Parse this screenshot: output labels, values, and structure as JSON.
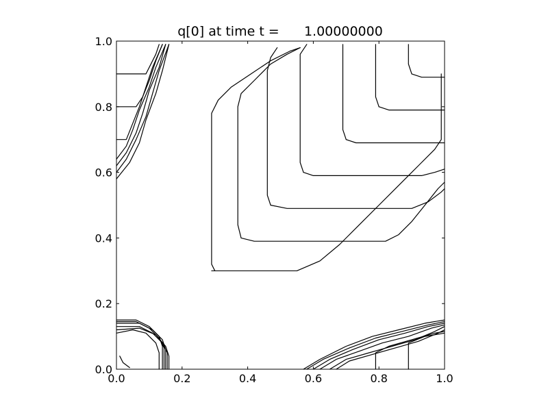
{
  "chart_data": {
    "type": "contour",
    "title": "q[0] at time t =      1.00000000",
    "xlabel": "",
    "ylabel": "",
    "xlim": [
      0.0,
      1.0
    ],
    "ylim": [
      0.0,
      1.0
    ],
    "xticks": [
      {
        "value": 0.0,
        "label": "0.0"
      },
      {
        "value": 0.2,
        "label": "0.2"
      },
      {
        "value": 0.4,
        "label": "0.4"
      },
      {
        "value": 0.6,
        "label": "0.6"
      },
      {
        "value": 0.8,
        "label": "0.8"
      },
      {
        "value": 1.0,
        "label": "1.0"
      }
    ],
    "yticks": [
      {
        "value": 0.0,
        "label": "0.0"
      },
      {
        "value": 0.2,
        "label": "0.2"
      },
      {
        "value": 0.4,
        "label": "0.4"
      },
      {
        "value": 0.6,
        "label": "0.6"
      },
      {
        "value": 0.8,
        "label": "0.8"
      },
      {
        "value": 1.0,
        "label": "1.0"
      }
    ],
    "grid": false,
    "line_color": "#000000",
    "contours": [
      {
        "points": [
          [
            0.29,
            0.3
          ],
          [
            0.55,
            0.3
          ],
          [
            0.62,
            0.33
          ],
          [
            0.68,
            0.38
          ],
          [
            0.74,
            0.44
          ],
          [
            0.8,
            0.5
          ],
          [
            0.86,
            0.56
          ],
          [
            0.92,
            0.62
          ],
          [
            0.97,
            0.67
          ],
          [
            0.99,
            0.7
          ],
          [
            0.99,
            0.8
          ],
          [
            0.99,
            0.9
          ]
        ]
      },
      {
        "points": [
          [
            0.3,
            0.3
          ],
          [
            0.29,
            0.32
          ],
          [
            0.29,
            0.78
          ],
          [
            0.31,
            0.82
          ],
          [
            0.35,
            0.86
          ],
          [
            0.41,
            0.9
          ],
          [
            0.47,
            0.94
          ],
          [
            0.53,
            0.97
          ]
        ]
      },
      {
        "points": [
          [
            0.53,
            0.97
          ],
          [
            0.56,
            0.98
          ]
        ]
      },
      {
        "points": [
          [
            0.38,
            0.4
          ],
          [
            0.42,
            0.39
          ],
          [
            0.82,
            0.39
          ],
          [
            0.86,
            0.41
          ],
          [
            0.9,
            0.45
          ],
          [
            0.94,
            0.5
          ],
          [
            0.98,
            0.55
          ],
          [
            1.0,
            0.57
          ]
        ]
      },
      {
        "points": [
          [
            0.38,
            0.4
          ],
          [
            0.37,
            0.44
          ],
          [
            0.37,
            0.8
          ],
          [
            0.38,
            0.84
          ],
          [
            0.42,
            0.88
          ],
          [
            0.47,
            0.93
          ],
          [
            0.52,
            0.96
          ],
          [
            0.56,
            0.98
          ]
        ]
      },
      {
        "points": [
          [
            0.47,
            0.5
          ],
          [
            0.52,
            0.49
          ],
          [
            0.9,
            0.49
          ],
          [
            0.95,
            0.51
          ],
          [
            0.99,
            0.54
          ],
          [
            1.0,
            0.55
          ]
        ]
      },
      {
        "points": [
          [
            0.47,
            0.5
          ],
          [
            0.46,
            0.53
          ],
          [
            0.46,
            0.91
          ],
          [
            0.47,
            0.95
          ],
          [
            0.49,
            0.98
          ]
        ]
      },
      {
        "points": [
          [
            0.57,
            0.6
          ],
          [
            0.6,
            0.59
          ],
          [
            0.93,
            0.59
          ],
          [
            0.97,
            0.6
          ],
          [
            1.0,
            0.61
          ]
        ]
      },
      {
        "points": [
          [
            0.57,
            0.6
          ],
          [
            0.56,
            0.63
          ],
          [
            0.56,
            0.96
          ],
          [
            0.58,
            0.99
          ]
        ]
      },
      {
        "points": [
          [
            0.7,
            0.7
          ],
          [
            0.73,
            0.69
          ],
          [
            1.0,
            0.69
          ]
        ]
      },
      {
        "points": [
          [
            0.7,
            0.7
          ],
          [
            0.69,
            0.73
          ],
          [
            0.69,
            0.99
          ]
        ]
      },
      {
        "points": [
          [
            0.8,
            0.8
          ],
          [
            0.83,
            0.79
          ],
          [
            1.0,
            0.79
          ]
        ]
      },
      {
        "points": [
          [
            0.8,
            0.8
          ],
          [
            0.79,
            0.83
          ],
          [
            0.79,
            0.99
          ]
        ]
      },
      {
        "points": [
          [
            0.9,
            0.9
          ],
          [
            0.93,
            0.89
          ],
          [
            1.0,
            0.89
          ]
        ]
      },
      {
        "points": [
          [
            0.9,
            0.9
          ],
          [
            0.89,
            0.93
          ],
          [
            0.89,
            0.99
          ]
        ]
      },
      {
        "points": [
          [
            0.0,
            0.9
          ],
          [
            0.09,
            0.9
          ],
          [
            0.1,
            0.92
          ],
          [
            0.12,
            0.96
          ],
          [
            0.13,
            0.99
          ]
        ]
      },
      {
        "points": [
          [
            0.0,
            0.8
          ],
          [
            0.06,
            0.8
          ],
          [
            0.08,
            0.83
          ],
          [
            0.1,
            0.88
          ],
          [
            0.12,
            0.94
          ],
          [
            0.14,
            0.99
          ]
        ]
      },
      {
        "points": [
          [
            0.0,
            0.7
          ],
          [
            0.03,
            0.7
          ],
          [
            0.05,
            0.75
          ],
          [
            0.07,
            0.8
          ],
          [
            0.09,
            0.86
          ],
          [
            0.11,
            0.92
          ],
          [
            0.14,
            0.99
          ]
        ]
      },
      {
        "points": [
          [
            0.0,
            0.64
          ],
          [
            0.03,
            0.68
          ],
          [
            0.05,
            0.73
          ],
          [
            0.07,
            0.79
          ],
          [
            0.1,
            0.86
          ],
          [
            0.12,
            0.92
          ],
          [
            0.15,
            0.99
          ]
        ]
      },
      {
        "points": [
          [
            0.0,
            0.62
          ],
          [
            0.03,
            0.66
          ],
          [
            0.06,
            0.72
          ],
          [
            0.08,
            0.78
          ],
          [
            0.1,
            0.85
          ],
          [
            0.13,
            0.92
          ],
          [
            0.15,
            0.99
          ]
        ]
      },
      {
        "points": [
          [
            0.0,
            0.6
          ],
          [
            0.03,
            0.64
          ],
          [
            0.06,
            0.7
          ],
          [
            0.09,
            0.77
          ],
          [
            0.11,
            0.84
          ],
          [
            0.13,
            0.91
          ],
          [
            0.16,
            0.99
          ]
        ]
      },
      {
        "points": [
          [
            0.0,
            0.58
          ],
          [
            0.04,
            0.63
          ],
          [
            0.07,
            0.69
          ],
          [
            0.09,
            0.76
          ],
          [
            0.12,
            0.84
          ],
          [
            0.14,
            0.91
          ],
          [
            0.16,
            0.99
          ]
        ]
      },
      {
        "points": [
          [
            0.0,
            0.15
          ],
          [
            0.06,
            0.15
          ],
          [
            0.1,
            0.13
          ],
          [
            0.13,
            0.1
          ],
          [
            0.14,
            0.07
          ],
          [
            0.14,
            0.0
          ]
        ]
      },
      {
        "points": [
          [
            0.0,
            0.145
          ],
          [
            0.06,
            0.145
          ],
          [
            0.1,
            0.125
          ],
          [
            0.13,
            0.095
          ],
          [
            0.145,
            0.065
          ],
          [
            0.145,
            0.0
          ]
        ]
      },
      {
        "points": [
          [
            0.0,
            0.14
          ],
          [
            0.07,
            0.14
          ],
          [
            0.11,
            0.12
          ],
          [
            0.14,
            0.09
          ],
          [
            0.15,
            0.06
          ],
          [
            0.15,
            0.0
          ]
        ]
      },
      {
        "points": [
          [
            0.0,
            0.13
          ],
          [
            0.07,
            0.13
          ],
          [
            0.11,
            0.11
          ],
          [
            0.14,
            0.08
          ],
          [
            0.155,
            0.05
          ],
          [
            0.155,
            0.0
          ]
        ]
      },
      {
        "points": [
          [
            0.0,
            0.12
          ],
          [
            0.07,
            0.125
          ],
          [
            0.12,
            0.105
          ],
          [
            0.15,
            0.07
          ],
          [
            0.16,
            0.04
          ],
          [
            0.16,
            0.0
          ]
        ]
      },
      {
        "points": [
          [
            0.0,
            0.11
          ],
          [
            0.05,
            0.12
          ],
          [
            0.09,
            0.11
          ],
          [
            0.12,
            0.08
          ],
          [
            0.13,
            0.05
          ],
          [
            0.13,
            0.0
          ]
        ]
      },
      {
        "points": [
          [
            0.01,
            0.04
          ],
          [
            0.02,
            0.02
          ],
          [
            0.04,
            0.005
          ]
        ]
      },
      {
        "points": [
          [
            0.57,
            0.0
          ],
          [
            0.62,
            0.03
          ],
          [
            0.7,
            0.07
          ],
          [
            0.78,
            0.1
          ],
          [
            0.86,
            0.12
          ],
          [
            0.94,
            0.14
          ],
          [
            1.0,
            0.15
          ]
        ]
      },
      {
        "points": [
          [
            0.58,
            0.0
          ],
          [
            0.63,
            0.03
          ],
          [
            0.71,
            0.065
          ],
          [
            0.79,
            0.095
          ],
          [
            0.87,
            0.115
          ],
          [
            0.95,
            0.135
          ],
          [
            1.0,
            0.145
          ]
        ]
      },
      {
        "points": [
          [
            0.6,
            0.0
          ],
          [
            0.65,
            0.03
          ],
          [
            0.72,
            0.06
          ],
          [
            0.8,
            0.09
          ],
          [
            0.88,
            0.11
          ],
          [
            0.95,
            0.13
          ],
          [
            1.0,
            0.14
          ]
        ]
      },
      {
        "points": [
          [
            0.62,
            0.0
          ],
          [
            0.67,
            0.03
          ],
          [
            0.74,
            0.055
          ],
          [
            0.81,
            0.08
          ],
          [
            0.89,
            0.1
          ],
          [
            0.96,
            0.125
          ],
          [
            1.0,
            0.135
          ]
        ]
      },
      {
        "points": [
          [
            0.65,
            0.0
          ],
          [
            0.7,
            0.03
          ],
          [
            0.77,
            0.05
          ],
          [
            0.84,
            0.07
          ],
          [
            0.91,
            0.09
          ],
          [
            0.97,
            0.115
          ],
          [
            1.0,
            0.13
          ]
        ]
      },
      {
        "points": [
          [
            0.67,
            0.0
          ],
          [
            0.71,
            0.025
          ],
          [
            0.78,
            0.045
          ],
          [
            0.85,
            0.065
          ],
          [
            0.92,
            0.085
          ],
          [
            0.98,
            0.11
          ],
          [
            1.0,
            0.12
          ]
        ]
      },
      {
        "points": [
          [
            0.79,
            0.0
          ],
          [
            0.79,
            0.05
          ],
          [
            0.83,
            0.07
          ],
          [
            0.9,
            0.09
          ],
          [
            0.97,
            0.11
          ],
          [
            1.0,
            0.115
          ]
        ]
      },
      {
        "points": [
          [
            0.89,
            0.0
          ],
          [
            0.89,
            0.08
          ],
          [
            0.94,
            0.1
          ],
          [
            1.0,
            0.11
          ]
        ]
      }
    ]
  }
}
